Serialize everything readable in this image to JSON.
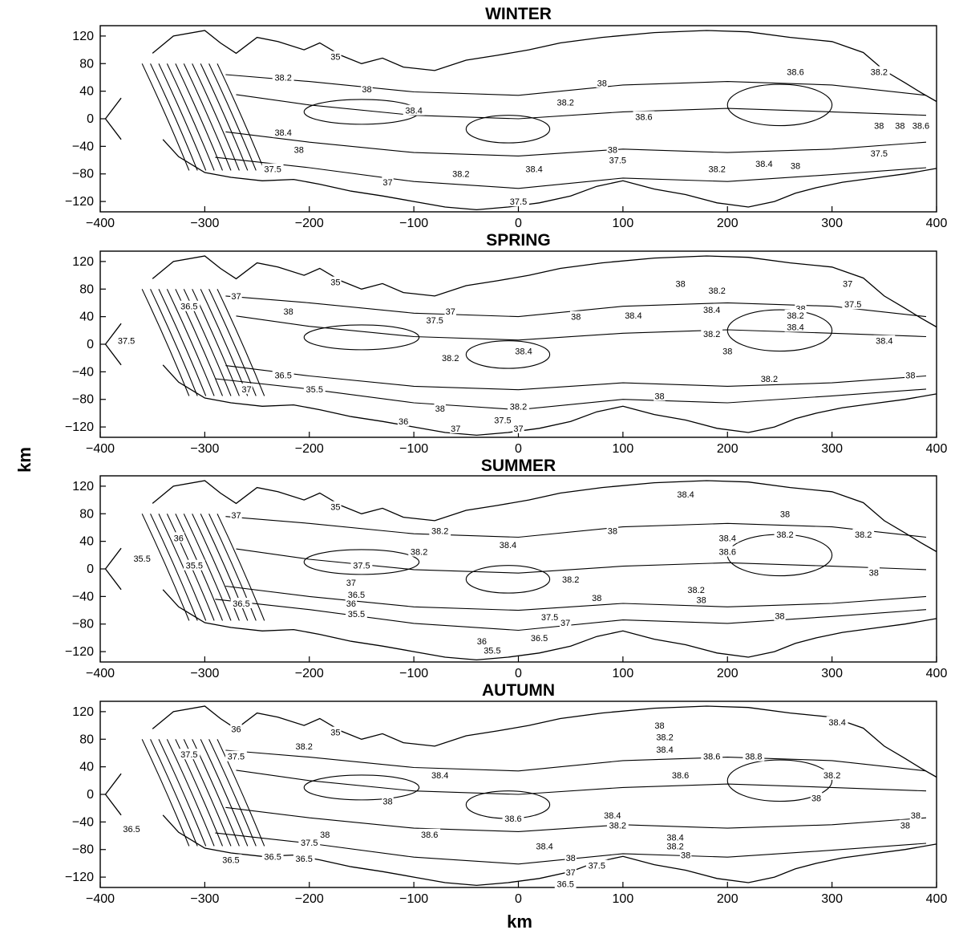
{
  "chart_data": [
    {
      "type": "contour",
      "title": "WINTER",
      "xlabel": "",
      "ylabel": "",
      "xlim": [
        -400,
        400
      ],
      "ylim": [
        -135,
        135
      ],
      "xticks": [
        "−400",
        "−300",
        "−200",
        "−100",
        "0",
        "100",
        "200",
        "300",
        "400"
      ],
      "yticks": [
        "120",
        "80",
        "40",
        "0",
        "−40",
        "−80",
        "−120"
      ],
      "contour_labels": [
        {
          "value": "35",
          "x": -175,
          "y": 90
        },
        {
          "value": "38.2",
          "x": -225,
          "y": 60
        },
        {
          "value": "38",
          "x": -145,
          "y": 43
        },
        {
          "value": "38",
          "x": 80,
          "y": 52
        },
        {
          "value": "38.6",
          "x": 265,
          "y": 68
        },
        {
          "value": "38.2",
          "x": 345,
          "y": 68
        },
        {
          "value": "38.4",
          "x": -100,
          "y": 12
        },
        {
          "value": "38.2",
          "x": 45,
          "y": 24
        },
        {
          "value": "38.6",
          "x": 120,
          "y": 3
        },
        {
          "value": "38.4",
          "x": -225,
          "y": -20
        },
        {
          "value": "38",
          "x": -210,
          "y": -45
        },
        {
          "value": "38",
          "x": 90,
          "y": -45
        },
        {
          "value": "38",
          "x": 345,
          "y": -10
        },
        {
          "value": "38",
          "x": 365,
          "y": -10
        },
        {
          "value": "38.6",
          "x": 385,
          "y": -10
        },
        {
          "value": "37.5",
          "x": -235,
          "y": -73
        },
        {
          "value": "37.5",
          "x": 95,
          "y": -60
        },
        {
          "value": "37.5",
          "x": 345,
          "y": -50
        },
        {
          "value": "37",
          "x": -125,
          "y": -92
        },
        {
          "value": "38.2",
          "x": -55,
          "y": -80
        },
        {
          "value": "38.4",
          "x": 15,
          "y": -73
        },
        {
          "value": "38.2",
          "x": 190,
          "y": -73
        },
        {
          "value": "38.4",
          "x": 235,
          "y": -65
        },
        {
          "value": "38",
          "x": 265,
          "y": -68
        },
        {
          "value": "37.5",
          "x": 0,
          "y": -120
        }
      ]
    },
    {
      "type": "contour",
      "title": "SPRING",
      "xlabel": "",
      "ylabel": "km",
      "xlim": [
        -400,
        400
      ],
      "ylim": [
        -135,
        135
      ],
      "xticks": [
        "−400",
        "−300",
        "−200",
        "−100",
        "0",
        "100",
        "200",
        "300",
        "400"
      ],
      "yticks": [
        "120",
        "80",
        "40",
        "0",
        "−40",
        "−80",
        "−120"
      ],
      "contour_labels": [
        {
          "value": "35",
          "x": -175,
          "y": 90
        },
        {
          "value": "37",
          "x": -270,
          "y": 70
        },
        {
          "value": "36.5",
          "x": -315,
          "y": 55
        },
        {
          "value": "38",
          "x": 155,
          "y": 88
        },
        {
          "value": "38.2",
          "x": 190,
          "y": 78
        },
        {
          "value": "37",
          "x": 315,
          "y": 88
        },
        {
          "value": "38.4",
          "x": 185,
          "y": 50
        },
        {
          "value": "37.5",
          "x": 320,
          "y": 58
        },
        {
          "value": "38",
          "x": 270,
          "y": 52
        },
        {
          "value": "38.2",
          "x": 265,
          "y": 42
        },
        {
          "value": "38",
          "x": -220,
          "y": 48
        },
        {
          "value": "37",
          "x": -65,
          "y": 48
        },
        {
          "value": "37.5",
          "x": -80,
          "y": 35
        },
        {
          "value": "38",
          "x": 55,
          "y": 40
        },
        {
          "value": "38.4",
          "x": 110,
          "y": 42
        },
        {
          "value": "38.4",
          "x": 265,
          "y": 25
        },
        {
          "value": "37.5",
          "x": -375,
          "y": 5
        },
        {
          "value": "38.2",
          "x": 185,
          "y": 15
        },
        {
          "value": "38.4",
          "x": 350,
          "y": 5
        },
        {
          "value": "38.4",
          "x": 5,
          "y": -10
        },
        {
          "value": "38.2",
          "x": -65,
          "y": -20
        },
        {
          "value": "38",
          "x": 200,
          "y": -10
        },
        {
          "value": "38.2",
          "x": 240,
          "y": -50
        },
        {
          "value": "38",
          "x": 375,
          "y": -45
        },
        {
          "value": "36.5",
          "x": -225,
          "y": -45
        },
        {
          "value": "37",
          "x": -260,
          "y": -65
        },
        {
          "value": "35.5",
          "x": -195,
          "y": -65
        },
        {
          "value": "38",
          "x": 135,
          "y": -75
        },
        {
          "value": "38",
          "x": -75,
          "y": -93
        },
        {
          "value": "38.2",
          "x": 0,
          "y": -90
        },
        {
          "value": "36",
          "x": -110,
          "y": -112
        },
        {
          "value": "37.5",
          "x": -15,
          "y": -110
        },
        {
          "value": "37",
          "x": -60,
          "y": -122
        },
        {
          "value": "37",
          "x": 0,
          "y": -122
        }
      ]
    },
    {
      "type": "contour",
      "title": "SUMMER",
      "xlabel": "",
      "ylabel": "",
      "xlim": [
        -400,
        400
      ],
      "ylim": [
        -135,
        135
      ],
      "xticks": [
        "−400",
        "−300",
        "−200",
        "−100",
        "0",
        "100",
        "200",
        "300",
        "400"
      ],
      "yticks": [
        "120",
        "80",
        "40",
        "0",
        "−40",
        "−80",
        "−120"
      ],
      "contour_labels": [
        {
          "value": "35",
          "x": -175,
          "y": 90
        },
        {
          "value": "37",
          "x": -270,
          "y": 78
        },
        {
          "value": "38.4",
          "x": 160,
          "y": 108
        },
        {
          "value": "38",
          "x": 255,
          "y": 80
        },
        {
          "value": "38",
          "x": 90,
          "y": 55
        },
        {
          "value": "38.2",
          "x": -75,
          "y": 55
        },
        {
          "value": "38.4",
          "x": 200,
          "y": 45
        },
        {
          "value": "38.2",
          "x": 255,
          "y": 50
        },
        {
          "value": "38.2",
          "x": 330,
          "y": 50
        },
        {
          "value": "36",
          "x": -325,
          "y": 45
        },
        {
          "value": "38.2",
          "x": -95,
          "y": 25
        },
        {
          "value": "38.4",
          "x": -10,
          "y": 35
        },
        {
          "value": "38.6",
          "x": 200,
          "y": 25
        },
        {
          "value": "35.5",
          "x": -360,
          "y": 15
        },
        {
          "value": "35.5",
          "x": -310,
          "y": 5
        },
        {
          "value": "37.5",
          "x": -150,
          "y": 5
        },
        {
          "value": "38.2",
          "x": 50,
          "y": -15
        },
        {
          "value": "38",
          "x": 340,
          "y": -5
        },
        {
          "value": "37",
          "x": -160,
          "y": -20
        },
        {
          "value": "38.2",
          "x": 170,
          "y": -30
        },
        {
          "value": "38",
          "x": 175,
          "y": -45
        },
        {
          "value": "36.5",
          "x": -155,
          "y": -37
        },
        {
          "value": "38",
          "x": 75,
          "y": -42
        },
        {
          "value": "36",
          "x": -160,
          "y": -50
        },
        {
          "value": "36.5",
          "x": -265,
          "y": -50
        },
        {
          "value": "35.5",
          "x": -155,
          "y": -65
        },
        {
          "value": "37.5",
          "x": 30,
          "y": -70
        },
        {
          "value": "37",
          "x": 45,
          "y": -78
        },
        {
          "value": "38",
          "x": 250,
          "y": -68
        },
        {
          "value": "36",
          "x": -35,
          "y": -105
        },
        {
          "value": "36.5",
          "x": 20,
          "y": -100
        },
        {
          "value": "35.5",
          "x": -25,
          "y": -118
        }
      ]
    },
    {
      "type": "contour",
      "title": "AUTUMN",
      "xlabel": "km",
      "ylabel": "",
      "xlim": [
        -400,
        400
      ],
      "ylim": [
        -135,
        135
      ],
      "xticks": [
        "−400",
        "−300",
        "−200",
        "−100",
        "0",
        "100",
        "200",
        "300",
        "400"
      ],
      "yticks": [
        "120",
        "80",
        "40",
        "0",
        "−40",
        "−80",
        "−120"
      ],
      "contour_labels": [
        {
          "value": "35",
          "x": -175,
          "y": 90
        },
        {
          "value": "36",
          "x": -270,
          "y": 95
        },
        {
          "value": "38",
          "x": 135,
          "y": 100
        },
        {
          "value": "38.4",
          "x": 305,
          "y": 105
        },
        {
          "value": "38.2",
          "x": 140,
          "y": 83
        },
        {
          "value": "37.5",
          "x": -315,
          "y": 58
        },
        {
          "value": "37.5",
          "x": -270,
          "y": 55
        },
        {
          "value": "38.2",
          "x": -205,
          "y": 70
        },
        {
          "value": "38.4",
          "x": 140,
          "y": 65
        },
        {
          "value": "38.6",
          "x": 185,
          "y": 55
        },
        {
          "value": "38.8",
          "x": 225,
          "y": 55
        },
        {
          "value": "38.4",
          "x": -75,
          "y": 28
        },
        {
          "value": "38.6",
          "x": 155,
          "y": 28
        },
        {
          "value": "38.2",
          "x": 300,
          "y": 28
        },
        {
          "value": "38",
          "x": -125,
          "y": -10
        },
        {
          "value": "38",
          "x": 285,
          "y": -5
        },
        {
          "value": "38.6",
          "x": -5,
          "y": -35
        },
        {
          "value": "38.4",
          "x": 90,
          "y": -30
        },
        {
          "value": "38.6",
          "x": -85,
          "y": -58
        },
        {
          "value": "38.2",
          "x": 95,
          "y": -45
        },
        {
          "value": "38.4",
          "x": 150,
          "y": -62
        },
        {
          "value": "38.2",
          "x": 150,
          "y": -75
        },
        {
          "value": "38",
          "x": 160,
          "y": -88
        },
        {
          "value": "38",
          "x": 380,
          "y": -30
        },
        {
          "value": "38",
          "x": 370,
          "y": -45
        },
        {
          "value": "36.5",
          "x": -370,
          "y": -50
        },
        {
          "value": "38",
          "x": -185,
          "y": -58
        },
        {
          "value": "37.5",
          "x": -200,
          "y": -70
        },
        {
          "value": "38.4",
          "x": 25,
          "y": -75
        },
        {
          "value": "38",
          "x": 50,
          "y": -92
        },
        {
          "value": "36.5",
          "x": -275,
          "y": -95
        },
        {
          "value": "36.5",
          "x": -235,
          "y": -90
        },
        {
          "value": "36.5",
          "x": -205,
          "y": -93
        },
        {
          "value": "37.5",
          "x": 75,
          "y": -103
        },
        {
          "value": "37",
          "x": 50,
          "y": -113
        },
        {
          "value": "36.5",
          "x": 45,
          "y": -130
        }
      ]
    }
  ]
}
